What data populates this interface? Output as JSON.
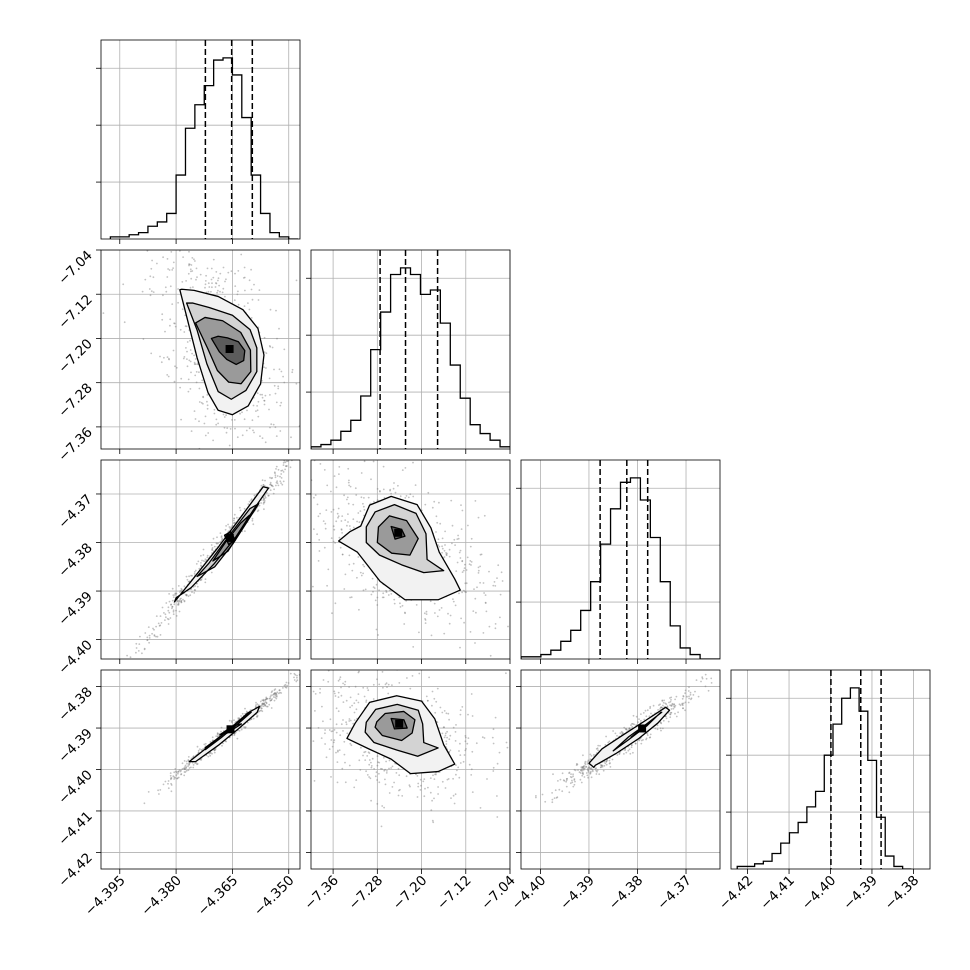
{
  "chart_data": {
    "type": "corner",
    "title": "",
    "parameters": [
      {
        "name": "",
        "range": [
          -4.4,
          -4.347
        ],
        "ticks": [
          -4.395,
          -4.38,
          -4.365,
          -4.35
        ],
        "tick_labels": [
          "−4.395",
          "−4.380",
          "−4.365",
          "−4.350"
        ],
        "quantiles": [
          -4.3722,
          -4.3652,
          -4.3597
        ],
        "histogram": {
          "edges_start": -4.3975,
          "bin_width": 0.0025,
          "counts": [
            1,
            1,
            2,
            3,
            6,
            8,
            12,
            30,
            52,
            63,
            72,
            84,
            85,
            77,
            57,
            30,
            12,
            3,
            1,
            0
          ]
        }
      },
      {
        "name": "",
        "range": [
          -7.4,
          -7.04
        ],
        "ticks": [
          -7.36,
          -7.28,
          -7.2,
          -7.12,
          -7.04
        ],
        "tick_labels": [
          "−7.36",
          "−7.28",
          "−7.20",
          "−7.12",
          "−7.04"
        ],
        "quantiles": [
          -7.275,
          -7.229,
          -7.171
        ],
        "histogram": {
          "edges_start": -7.4,
          "bin_width": 0.018,
          "counts": [
            1,
            2,
            4,
            8,
            13,
            24,
            45,
            62,
            79,
            82,
            79,
            70,
            72,
            57,
            38,
            23,
            11,
            7,
            4,
            1
          ]
        }
      },
      {
        "name": "",
        "range": [
          -4.404,
          -4.363
        ],
        "ticks": [
          -4.4,
          -4.39,
          -4.38,
          -4.37
        ],
        "tick_labels": [
          "−4.40",
          "−4.39",
          "−4.38",
          "−4.37"
        ],
        "quantiles": [
          -4.3877,
          -4.3822,
          -4.3779
        ],
        "histogram": {
          "edges_start": -4.404,
          "bin_width": 0.00205,
          "counts": [
            1,
            1,
            2,
            4,
            8,
            13,
            22,
            35,
            52,
            68,
            80,
            82,
            72,
            55,
            35,
            15,
            5,
            2,
            0,
            0
          ]
        }
      },
      {
        "name": "",
        "range": [
          -4.424,
          -4.376
        ],
        "ticks": [
          -4.42,
          -4.41,
          -4.4,
          -4.39,
          -4.38
        ],
        "tick_labels": [
          "−4.42",
          "−4.41",
          "−4.40",
          "−4.39",
          "−4.38"
        ],
        "quantiles": [
          -4.3999,
          -4.3927,
          -4.3878
        ],
        "histogram": {
          "edges_start": -4.4225,
          "bin_width": 0.0021,
          "counts": [
            1,
            1,
            2,
            3,
            6,
            10,
            14,
            18,
            24,
            30,
            44,
            56,
            66,
            70,
            61,
            42,
            20,
            5,
            1,
            0
          ]
        }
      }
    ],
    "contours": {
      "1_0": [
        [
          [
            -4.3706,
            -7.2
          ],
          [
            -4.3685,
            -7.224
          ],
          [
            -4.3665,
            -7.238
          ],
          [
            -4.364,
            -7.247
          ],
          [
            -4.362,
            -7.24
          ],
          [
            -4.3617,
            -7.222
          ],
          [
            -4.3634,
            -7.206
          ],
          [
            -4.3663,
            -7.199
          ],
          [
            -4.3688,
            -7.196
          ]
        ],
        [
          [
            -4.3748,
            -7.172
          ],
          [
            -4.3716,
            -7.218
          ],
          [
            -4.369,
            -7.258
          ],
          [
            -4.366,
            -7.279
          ],
          [
            -4.3627,
            -7.282
          ],
          [
            -4.3601,
            -7.26
          ],
          [
            -4.3602,
            -7.221
          ],
          [
            -4.3628,
            -7.189
          ],
          [
            -4.3676,
            -7.168
          ],
          [
            -4.3723,
            -7.162
          ]
        ],
        [
          [
            -4.3772,
            -7.136
          ],
          [
            -4.3744,
            -7.185
          ],
          [
            -4.3718,
            -7.246
          ],
          [
            -4.3688,
            -7.296
          ],
          [
            -4.3653,
            -7.31
          ],
          [
            -4.3614,
            -7.294
          ],
          [
            -4.3585,
            -7.26
          ],
          [
            -4.3585,
            -7.217
          ],
          [
            -4.3603,
            -7.184
          ],
          [
            -4.365,
            -7.158
          ],
          [
            -4.3712,
            -7.144
          ],
          [
            -4.3755,
            -7.136
          ]
        ],
        [
          [
            -4.379,
            -7.112
          ],
          [
            -4.3772,
            -7.16
          ],
          [
            -4.3744,
            -7.235
          ],
          [
            -4.3715,
            -7.298
          ],
          [
            -4.3688,
            -7.33
          ],
          [
            -4.365,
            -7.338
          ],
          [
            -4.3608,
            -7.322
          ],
          [
            -4.3575,
            -7.282
          ],
          [
            -4.3566,
            -7.23
          ],
          [
            -4.3582,
            -7.182
          ],
          [
            -4.3622,
            -7.148
          ],
          [
            -4.3688,
            -7.124
          ],
          [
            -4.3752,
            -7.113
          ],
          [
            -4.3785,
            -7.111
          ]
        ]
      ],
      "2_0": [
        [
          [
            -4.3671,
            -4.3785
          ],
          [
            -4.366,
            -4.3804
          ],
          [
            -4.3642,
            -4.3795
          ],
          [
            -4.3655,
            -4.3778
          ]
        ],
        [
          [
            -4.3702,
            -4.3838
          ],
          [
            -4.3662,
            -4.3818
          ],
          [
            -4.3625,
            -4.3772
          ],
          [
            -4.3605,
            -4.3744
          ],
          [
            -4.3628,
            -4.376
          ],
          [
            -4.3667,
            -4.3798
          ]
        ],
        [
          [
            -4.3744,
            -4.387
          ],
          [
            -4.3697,
            -4.385
          ],
          [
            -4.3649,
            -4.3803
          ],
          [
            -4.3609,
            -4.3755
          ],
          [
            -4.358,
            -4.372
          ],
          [
            -4.3603,
            -4.373
          ],
          [
            -4.3655,
            -4.3782
          ],
          [
            -4.3712,
            -4.3842
          ]
        ],
        [
          [
            -4.38,
            -4.3914
          ],
          [
            -4.376,
            -4.3893
          ],
          [
            -4.37,
            -4.3845
          ],
          [
            -4.3642,
            -4.379
          ],
          [
            -4.359,
            -4.3728
          ],
          [
            -4.3554,
            -4.3688
          ],
          [
            -4.3568,
            -4.3685
          ],
          [
            -4.3625,
            -4.3745
          ],
          [
            -4.369,
            -4.3812
          ],
          [
            -4.376,
            -4.388
          ],
          [
            -4.3804,
            -4.3922
          ]
        ]
      ],
      "2_1": [
        [
          [
            -7.255,
            -4.3767
          ],
          [
            -7.236,
            -4.3773
          ],
          [
            -7.23,
            -4.3787
          ],
          [
            -7.248,
            -4.3793
          ]
        ],
        [
          [
            -7.278,
            -4.3768
          ],
          [
            -7.258,
            -4.3745
          ],
          [
            -7.227,
            -4.3755
          ],
          [
            -7.206,
            -4.3792
          ],
          [
            -7.221,
            -4.3826
          ],
          [
            -7.254,
            -4.3822
          ],
          [
            -7.28,
            -4.38
          ]
        ],
        [
          [
            -7.3,
            -4.3768
          ],
          [
            -7.284,
            -4.3737
          ],
          [
            -7.249,
            -4.3722
          ],
          [
            -7.21,
            -4.374
          ],
          [
            -7.192,
            -4.3782
          ],
          [
            -7.19,
            -4.3835
          ],
          [
            -7.16,
            -4.3858
          ],
          [
            -7.196,
            -4.3862
          ],
          [
            -7.236,
            -4.3846
          ],
          [
            -7.276,
            -4.3826
          ],
          [
            -7.3,
            -4.38
          ]
        ],
        [
          [
            -7.31,
            -4.3766
          ],
          [
            -7.294,
            -4.3723
          ],
          [
            -7.255,
            -4.3705
          ],
          [
            -7.208,
            -4.3722
          ],
          [
            -7.183,
            -4.377
          ],
          [
            -7.168,
            -4.382
          ],
          [
            -7.14,
            -4.3875
          ],
          [
            -7.13,
            -4.3898
          ],
          [
            -7.17,
            -4.3918
          ],
          [
            -7.23,
            -4.3918
          ],
          [
            -7.275,
            -4.388
          ],
          [
            -7.316,
            -4.382
          ],
          [
            -7.35,
            -4.3797
          ],
          [
            -7.33,
            -4.3778
          ]
        ]
      ],
      "3_0": [
        [
          [
            -4.3683,
            -4.3916
          ],
          [
            -4.3647,
            -4.3894
          ],
          [
            -4.3626,
            -4.389
          ],
          [
            -4.3664,
            -4.3912
          ]
        ],
        [
          [
            -4.3723,
            -4.3948
          ],
          [
            -4.3682,
            -4.392
          ],
          [
            -4.364,
            -4.3889
          ],
          [
            -4.3604,
            -4.3862
          ],
          [
            -4.36,
            -4.3862
          ],
          [
            -4.3638,
            -4.3892
          ],
          [
            -4.3681,
            -4.3924
          ],
          [
            -4.3722,
            -4.3952
          ]
        ],
        [
          [
            -4.3765,
            -4.3981
          ],
          [
            -4.3713,
            -4.3944
          ],
          [
            -4.366,
            -4.3904
          ],
          [
            -4.3608,
            -4.3863
          ],
          [
            -4.3578,
            -4.3848
          ],
          [
            -4.3584,
            -4.3862
          ],
          [
            -4.3633,
            -4.3901
          ],
          [
            -4.3688,
            -4.3942
          ],
          [
            -4.3748,
            -4.3981
          ]
        ]
      ],
      "3_1": [
        [
          [
            -7.255,
            -4.3877
          ],
          [
            -7.232,
            -4.388
          ],
          [
            -7.226,
            -4.39
          ],
          [
            -7.249,
            -4.3902
          ]
        ],
        [
          [
            -7.281,
            -4.3885
          ],
          [
            -7.266,
            -4.3865
          ],
          [
            -7.232,
            -4.386
          ],
          [
            -7.212,
            -4.388
          ],
          [
            -7.217,
            -4.3912
          ],
          [
            -7.236,
            -4.393
          ],
          [
            -7.271,
            -4.3918
          ],
          [
            -7.284,
            -4.3898
          ]
        ],
        [
          [
            -7.3,
            -4.3886
          ],
          [
            -7.283,
            -4.3855
          ],
          [
            -7.244,
            -4.3843
          ],
          [
            -7.206,
            -4.3857
          ],
          [
            -7.198,
            -4.389
          ],
          [
            -7.196,
            -4.3935
          ],
          [
            -7.17,
            -4.3948
          ],
          [
            -7.207,
            -4.3968
          ],
          [
            -7.245,
            -4.3953
          ],
          [
            -7.286,
            -4.3935
          ],
          [
            -7.302,
            -4.391
          ]
        ],
        [
          [
            -7.32,
            -4.3888
          ],
          [
            -7.294,
            -4.3838
          ],
          [
            -7.245,
            -4.3822
          ],
          [
            -7.2,
            -4.3835
          ],
          [
            -7.176,
            -4.3878
          ],
          [
            -7.16,
            -4.394
          ],
          [
            -7.14,
            -4.3987
          ],
          [
            -7.17,
            -4.4005
          ],
          [
            -7.22,
            -4.401
          ],
          [
            -7.255,
            -4.3975
          ],
          [
            -7.296,
            -4.395
          ],
          [
            -7.335,
            -4.3925
          ],
          [
            -7.325,
            -4.39
          ]
        ]
      ],
      "3_2": [
        [
          [
            -4.3813,
            -4.3922
          ],
          [
            -4.3787,
            -4.3896
          ],
          [
            -4.3771,
            -4.3882
          ],
          [
            -4.3791,
            -4.3904
          ]
        ],
        [
          [
            -4.385,
            -4.3955
          ],
          [
            -4.3817,
            -4.3927
          ],
          [
            -4.378,
            -4.3894
          ],
          [
            -4.3752,
            -4.3862
          ],
          [
            -4.375,
            -4.3862
          ],
          [
            -4.378,
            -4.3889
          ],
          [
            -4.3818,
            -4.3921
          ],
          [
            -4.385,
            -4.3955
          ]
        ],
        [
          [
            -4.3887,
            -4.399
          ],
          [
            -4.3845,
            -4.3962
          ],
          [
            -4.3797,
            -4.3925
          ],
          [
            -4.3758,
            -4.3888
          ],
          [
            -4.3734,
            -4.3857
          ],
          [
            -4.3742,
            -4.385
          ],
          [
            -4.3785,
            -4.3883
          ],
          [
            -4.383,
            -4.3917
          ],
          [
            -4.3873,
            -4.395
          ],
          [
            -4.39,
            -4.3985
          ],
          [
            -4.389,
            -4.3995
          ]
        ]
      ]
    },
    "grid": true,
    "colors": {
      "contour": "#000000",
      "scatter": "#777777",
      "grid": "#b0b0b0",
      "quantile": "#000000"
    }
  }
}
